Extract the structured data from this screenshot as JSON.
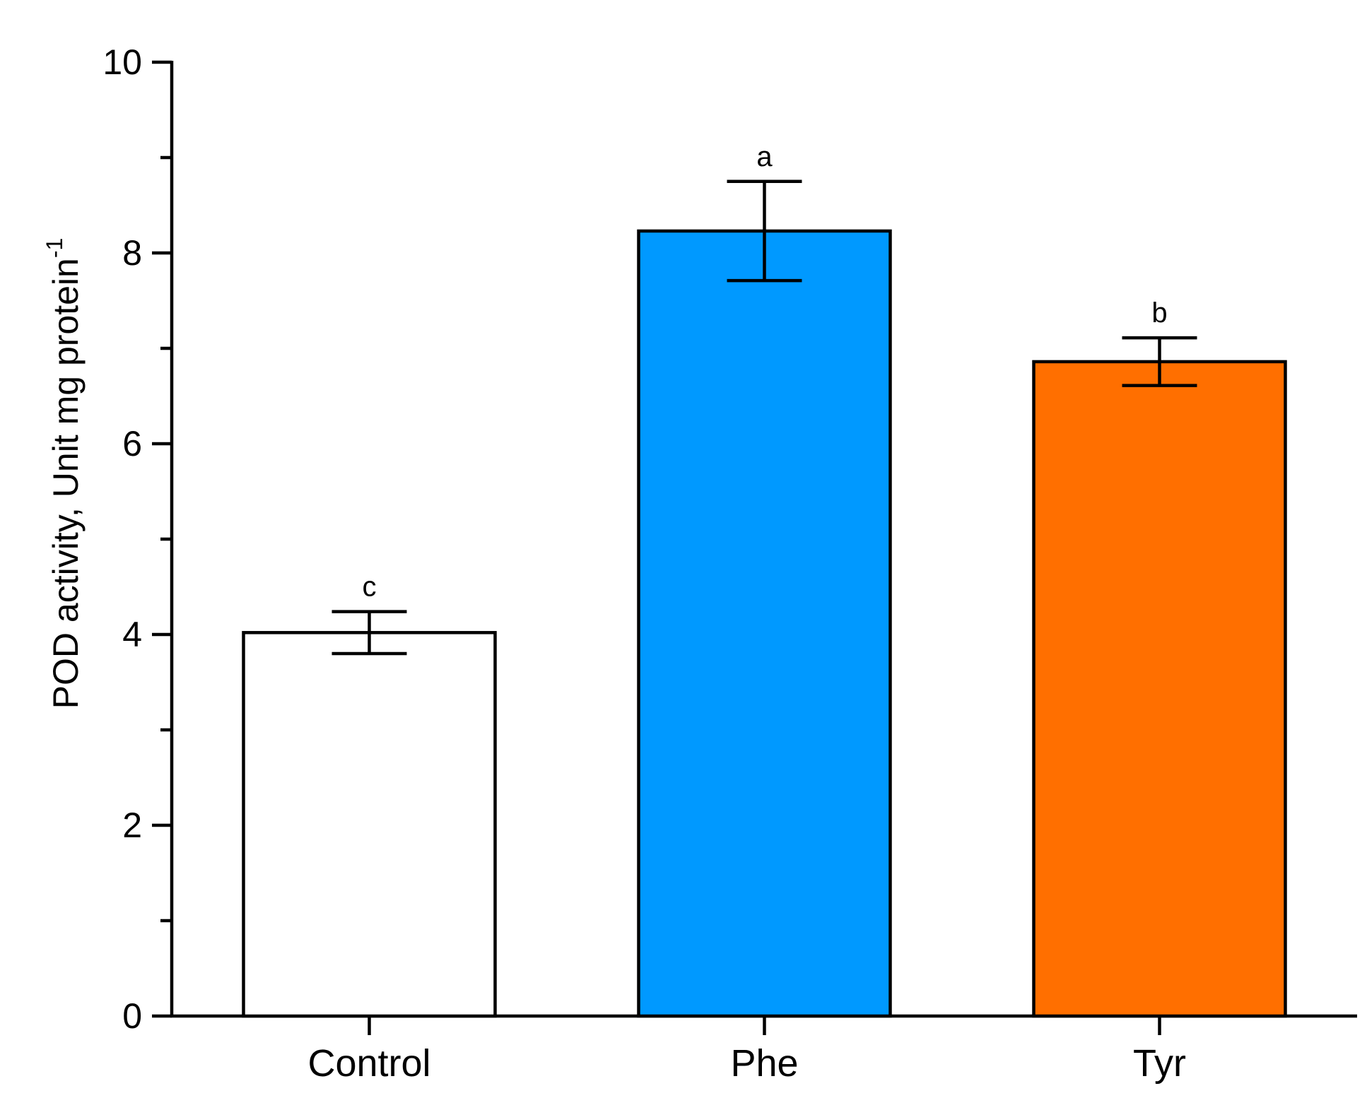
{
  "chart_data": {
    "type": "bar",
    "title": "",
    "xlabel": "",
    "ylabel": "POD activity, Unit mg protein",
    "ylabel_superscript": "-1",
    "ylim": [
      0,
      10
    ],
    "yticks": [
      0,
      2,
      4,
      6,
      8,
      10
    ],
    "yminor_ticks": [
      1,
      3,
      5,
      7,
      9
    ],
    "categories": [
      "Control",
      "Phe",
      "Tyr"
    ],
    "values": [
      4.02,
      8.23,
      6.86
    ],
    "errors": [
      0.22,
      0.52,
      0.25
    ],
    "significance": [
      "c",
      "a",
      "b"
    ],
    "colors": [
      "#ffffff",
      "#0099ff",
      "#ff6f00"
    ],
    "legend": "none",
    "grid": false
  }
}
